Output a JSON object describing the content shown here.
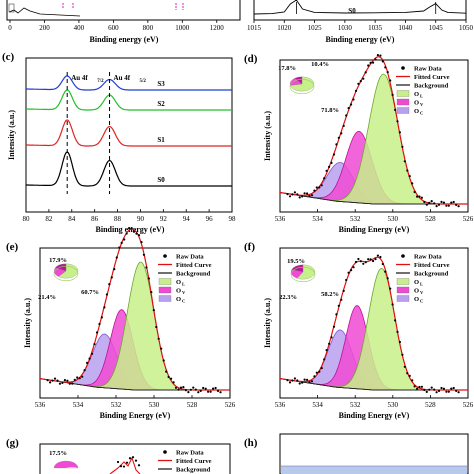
{
  "chart_data": [
    {
      "panel": "(b)",
      "type": "line",
      "xlabel": "Binding energy (eV)",
      "xlim": [
        1015,
        1050
      ],
      "xticks": [
        1015,
        1020,
        1025,
        1030,
        1035,
        1040,
        1045,
        1050
      ],
      "series": [
        {
          "name": "S0",
          "x": [
            1015,
            1018,
            1020,
            1021,
            1022,
            1023,
            1025,
            1030,
            1035,
            1040,
            1043,
            1044,
            1045,
            1046,
            1047,
            1050
          ],
          "y": [
            0.1,
            0.12,
            0.2,
            0.6,
            0.9,
            0.35,
            0.18,
            0.15,
            0.16,
            0.18,
            0.25,
            0.45,
            0.62,
            0.3,
            0.18,
            0.14
          ]
        }
      ]
    },
    {
      "panel": "(c)",
      "type": "line",
      "xlabel": "Binding energy (eV)",
      "ylabel": "Intensity (a.u.)",
      "xlim": [
        80,
        98
      ],
      "xticks": [
        80,
        82,
        84,
        86,
        88,
        90,
        92,
        94,
        96,
        98
      ],
      "annotations": [
        {
          "x": 83.6,
          "main": "Au 4f",
          "sub": "7/2"
        },
        {
          "x": 87.3,
          "main": "Au 4f",
          "sub": "5/2"
        }
      ],
      "series": [
        {
          "name": "S3",
          "offset": 3.0,
          "amp": 0.55
        },
        {
          "name": "S2",
          "offset": 2.0,
          "amp": 0.65
        },
        {
          "name": "S1",
          "offset": 1.0,
          "amp": 0.8
        },
        {
          "name": "S0",
          "offset": 0.0,
          "amp": 1.3
        }
      ],
      "peaks": [
        83.6,
        87.3
      ]
    },
    {
      "panel": "(d)",
      "type": "line",
      "xlabel": "Binding Energy (eV)",
      "ylabel": "Intensity (a.u.)",
      "xlim": [
        536,
        526
      ],
      "xticks": [
        536,
        534,
        532,
        530,
        528,
        526
      ],
      "legend": [
        "Raw Data",
        "Fitted Curve",
        "Background",
        "O",
        "O",
        "O"
      ],
      "legend_subs": [
        "L",
        "V",
        "C"
      ],
      "pie": [
        {
          "label": "71.8%",
          "value": 71.8
        },
        {
          "label": "17.8%",
          "value": 17.8
        },
        {
          "label": "10.4%",
          "value": 10.4
        }
      ],
      "components": {
        "OL": [
          530.5,
          1.0,
          0.78
        ],
        "OV": [
          531.8,
          0.55,
          0.7
        ],
        "OC": [
          532.8,
          0.3,
          0.7
        ]
      }
    },
    {
      "panel": "(e)",
      "type": "line",
      "xlabel": "Binding Energy (eV)",
      "ylabel": "Intensity (a.u.)",
      "xlim": [
        536,
        526
      ],
      "xticks": [
        536,
        534,
        532,
        530,
        528,
        526
      ],
      "legend": [
        "Raw Data",
        "Fitted Curve",
        "Background",
        "O",
        "O",
        "O"
      ],
      "legend_subs": [
        "L",
        "V",
        "C"
      ],
      "pie": [
        {
          "label": "60.7%",
          "value": 60.7
        },
        {
          "label": "21.4%",
          "value": 21.4
        },
        {
          "label": "17.9%",
          "value": 17.9
        }
      ],
      "components": {
        "OL": [
          530.7,
          1.0,
          0.7
        ],
        "OV": [
          531.7,
          0.62,
          0.6
        ],
        "OC": [
          532.6,
          0.42,
          0.65
        ]
      }
    },
    {
      "panel": "(f)",
      "type": "line",
      "xlabel": "Binding Energy (eV)",
      "ylabel": "Intensity (a.u.)",
      "xlim": [
        536,
        526
      ],
      "xticks": [
        536,
        534,
        532,
        530,
        528,
        526
      ],
      "legend": [
        "Raw Data",
        "Fitted Curve",
        "Background",
        "O",
        "O",
        "O"
      ],
      "legend_subs": [
        "L",
        "V",
        "C"
      ],
      "pie": [
        {
          "label": "58.2%",
          "value": 58.2
        },
        {
          "label": "22.3%",
          "value": 22.3
        },
        {
          "label": "19.5%",
          "value": 19.5
        }
      ],
      "components": {
        "OL": [
          530.6,
          0.95,
          0.7
        ],
        "OV": [
          531.9,
          0.65,
          0.6
        ],
        "OC": [
          532.8,
          0.45,
          0.65
        ]
      }
    },
    {
      "panel": "(g)",
      "type": "line",
      "legend": [
        "Raw Data",
        "Fitted Curve",
        "Background"
      ],
      "pie": [
        {
          "label": "17.5%",
          "value": 17.5
        }
      ]
    },
    {
      "panel": "(h)",
      "type": "table"
    }
  ],
  "colors": {
    "S3": "#1f3fd6",
    "S2": "#22c02a",
    "S1": "#e02424",
    "S0": "#000000",
    "fit": "#e01010",
    "bg": "#222222",
    "OL": "#c8f08a",
    "OV": "#f04ad4",
    "OC": "#b8a0f0",
    "OL_edge": "#6aa82a",
    "OV_edge": "#c0109a",
    "OC_edge": "#7a5ad0",
    "pie_dark": "#b81898",
    "table_fill": "#b9c9ec"
  }
}
